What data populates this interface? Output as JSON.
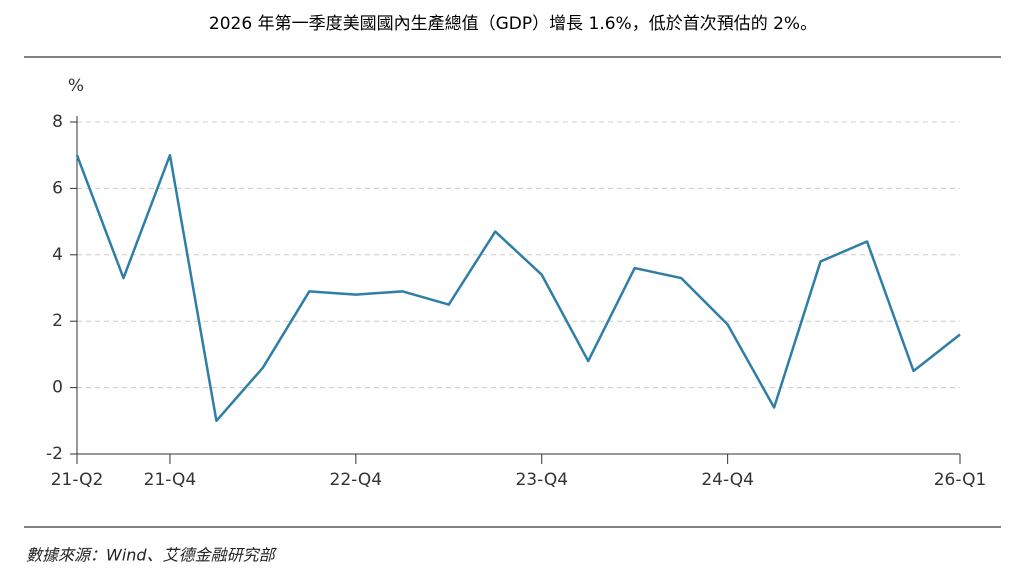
{
  "chart_data": {
    "type": "line",
    "title": "2026 年第一季度美國國內生產總值（GDP）增長 1.6%，低於首次預估的 2%。",
    "y_label": "%",
    "source": "數據來源：Wind、艾德金融研究部",
    "categories": [
      "21-Q2",
      null,
      "21-Q4",
      null,
      null,
      null,
      "22-Q4",
      null,
      null,
      null,
      "23-Q4",
      null,
      null,
      null,
      "24-Q4",
      null,
      null,
      null,
      null,
      "26-Q1"
    ],
    "values": [
      7.0,
      3.3,
      7.0,
      -1.0,
      0.6,
      2.9,
      2.8,
      2.9,
      2.5,
      4.7,
      3.4,
      0.8,
      3.6,
      3.3,
      1.9,
      -0.6,
      3.8,
      4.4,
      0.5,
      1.6
    ],
    "color": "#2f7ea6",
    "ylim": [
      -2,
      8
    ],
    "yticks": [
      -2,
      0,
      2,
      4,
      6,
      8
    ],
    "grid": true
  }
}
